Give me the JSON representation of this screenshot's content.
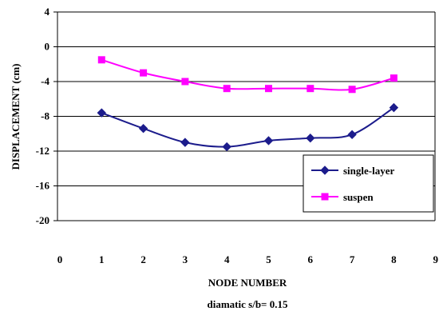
{
  "chart_data": {
    "type": "line",
    "xlabel": "NODE NUMBER",
    "ylabel": "DISPLACEMENT  (cm)",
    "caption": "diamatic s/b= 0.15",
    "xlim": [
      0,
      9
    ],
    "ylim": [
      -20,
      4
    ],
    "x_ticks": [
      0,
      1,
      2,
      3,
      4,
      5,
      6,
      7,
      8,
      9
    ],
    "y_ticks": [
      4,
      0,
      -4,
      -8,
      -12,
      -16,
      -20
    ],
    "grid": "horizontal",
    "legend_position": "bottom-right",
    "series": [
      {
        "name": "single-layer",
        "color": "#1c1c8c",
        "marker": "diamond",
        "x": [
          1,
          2,
          3,
          4,
          5,
          6,
          7,
          8
        ],
        "y": [
          -7.6,
          -9.4,
          -11.0,
          -11.5,
          -10.8,
          -10.5,
          -10.1,
          -7.0
        ]
      },
      {
        "name": "suspen",
        "color": "#ff00ff",
        "marker": "square",
        "x": [
          1,
          2,
          3,
          4,
          5,
          6,
          7,
          8
        ],
        "y": [
          -1.5,
          -3.0,
          -4.0,
          -4.8,
          -4.8,
          -4.8,
          -4.9,
          -3.6
        ]
      }
    ]
  }
}
